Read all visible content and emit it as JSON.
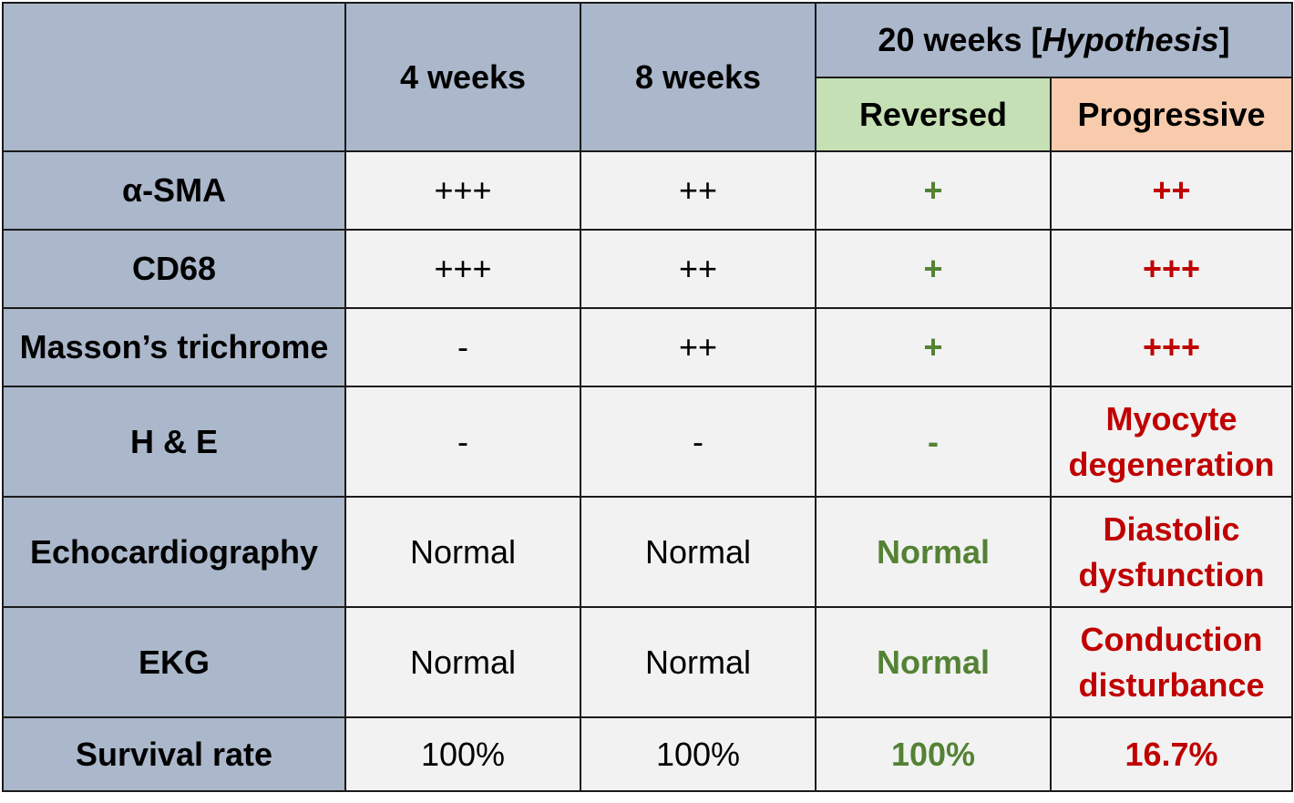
{
  "header": {
    "col_4": "4 weeks",
    "col_8": "8 weeks",
    "col_20_prefix": "20 weeks  [",
    "col_20_hypothesis": "Hypothesis",
    "col_20_suffix": "]",
    "reversed": "Reversed",
    "progressive": "Progressive"
  },
  "rows": [
    {
      "label": "α-SMA",
      "w4": "+++",
      "w8": "++",
      "rev": "+",
      "prog": "++"
    },
    {
      "label": "CD68",
      "w4": "+++",
      "w8": "++",
      "rev": "+",
      "prog": "+++"
    },
    {
      "label": "Masson’s trichrome",
      "w4": "-",
      "w8": "++",
      "rev": "+",
      "prog": "+++"
    },
    {
      "label": "H & E",
      "w4": "-",
      "w8": "-",
      "rev": "-",
      "prog_line1": "Myocyte",
      "prog_line2": "degeneration"
    },
    {
      "label": "Echocardiography",
      "w4": "Normal",
      "w8": "Normal",
      "rev": "Normal",
      "prog_line1": "Diastolic",
      "prog_line2": "dysfunction"
    },
    {
      "label": "EKG",
      "w4": "Normal",
      "w8": "Normal",
      "rev": "Normal",
      "prog_line1": "Conduction",
      "prog_line2": "disturbance"
    },
    {
      "label": "Survival rate",
      "w4": "100%",
      "w8": "100%",
      "rev": "100%",
      "prog": "16.7%"
    }
  ],
  "colors": {
    "header_bg": "#abb7ca",
    "cell_bg": "#f2f2f2",
    "reversed_bg": "#c5e0b4",
    "progressive_bg": "#f8cbad",
    "reversed_text": "#548235",
    "progressive_text": "#c00000"
  }
}
